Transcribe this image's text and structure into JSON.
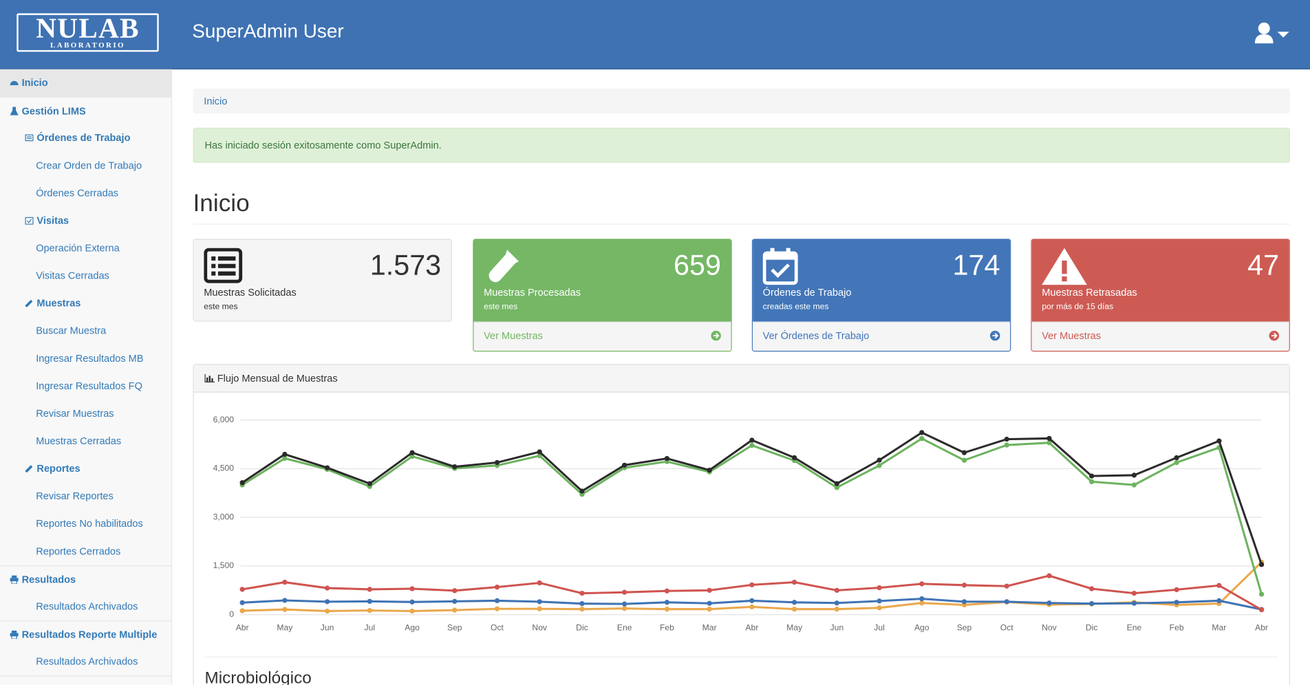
{
  "header": {
    "logo": "NULAB",
    "logo_sub": "LABORATORIO",
    "title": "SuperAdmin User"
  },
  "sidebar": {
    "items": [
      "Inicio",
      "Gestión LIMS",
      "Órdenes de Trabajo",
      "Crear Orden de Trabajo",
      "Órdenes Cerradas",
      "Visitas",
      "Operación Externa",
      "Visitas Cerradas",
      "Muestras",
      "Buscar Muestra",
      "Ingresar Resultados MB",
      "Ingresar Resultados FQ",
      "Revisar Muestras",
      "Muestras Cerradas",
      "Reportes",
      "Revisar Reportes",
      "Reportes No habilitados",
      "Reportes Cerrados",
      "Resultados",
      "Resultados Archivados",
      "Resultados Reporte Multiple",
      "Resultados Archivados"
    ]
  },
  "breadcrumb": "Inicio",
  "alert": "Has iniciado sesión exitosamente como SuperAdmin.",
  "page_title": "Inicio",
  "cards": [
    {
      "value": "1.573",
      "label": "Muestras Solicitadas",
      "sub": "este mes"
    },
    {
      "value": "659",
      "label": "Muestras Procesadas",
      "sub": "este mes",
      "link": "Ver Muestras"
    },
    {
      "value": "174",
      "label": "Órdenes de Trabajo",
      "sub": "creadas este mes",
      "link": "Ver Órdenes de Trabajo"
    },
    {
      "value": "47",
      "label": "Muestras Retrasadas",
      "sub": "por más de 15 días",
      "link": "Ver Muestras"
    }
  ],
  "chart_panel": {
    "title": "Flujo Mensual de Muestras"
  },
  "chart_data": {
    "type": "line",
    "categories": [
      "Abr",
      "May",
      "Jun",
      "Jul",
      "Ago",
      "Sep",
      "Oct",
      "Nov",
      "Dic",
      "Ene",
      "Feb",
      "Mar",
      "Abr",
      "May",
      "Jun",
      "Jul",
      "Ago",
      "Sep",
      "Oct",
      "Nov",
      "Dic",
      "Ene",
      "Feb",
      "Mar",
      "Abr"
    ],
    "ylim": [
      0,
      6000
    ],
    "yticks": [
      0,
      {
        "value": 1500,
        "label": "1,500"
      },
      {
        "value": 3000,
        "label": "3,000"
      },
      {
        "value": 4500,
        "label": "4,500"
      },
      {
        "value": 6000,
        "label": "6,000"
      }
    ],
    "grid": true,
    "series": [
      {
        "color": "#2b2b2b",
        "values": [
          4070,
          4945,
          4530,
          4040,
          4995,
          4560,
          4690,
          5020,
          3810,
          4610,
          4815,
          4455,
          5380,
          4840,
          4040,
          4765,
          5615,
          4995,
          5410,
          5435,
          4275,
          4300,
          4840,
          5355,
          1545
        ]
      },
      {
        "color": "#6cb35e",
        "values": [
          4000,
          4820,
          4480,
          3950,
          4880,
          4510,
          4600,
          4900,
          3710,
          4530,
          4720,
          4400,
          5220,
          4750,
          3920,
          4600,
          5430,
          4760,
          5230,
          5300,
          4100,
          4000,
          4690,
          5150,
          630
        ]
      },
      {
        "color": "#cf5450",
        "values": [
          780,
          1000,
          820,
          780,
          800,
          740,
          850,
          980,
          660,
          690,
          730,
          750,
          920,
          1000,
          750,
          830,
          950,
          910,
          880,
          1200,
          800,
          660,
          770,
          900,
          150
        ]
      },
      {
        "color": "#3f73b4",
        "values": [
          370,
          440,
          400,
          410,
          390,
          410,
          430,
          400,
          340,
          330,
          380,
          350,
          430,
          380,
          360,
          420,
          490,
          400,
          400,
          360,
          340,
          350,
          380,
          430,
          160
        ]
      },
      {
        "color": "#eaa84c",
        "values": [
          120,
          160,
          110,
          130,
          110,
          140,
          180,
          180,
          170,
          190,
          170,
          170,
          240,
          170,
          170,
          210,
          360,
          300,
          390,
          310,
          330,
          380,
          300,
          340,
          1620
        ]
      }
    ]
  },
  "section_title": "Microbiológico"
}
